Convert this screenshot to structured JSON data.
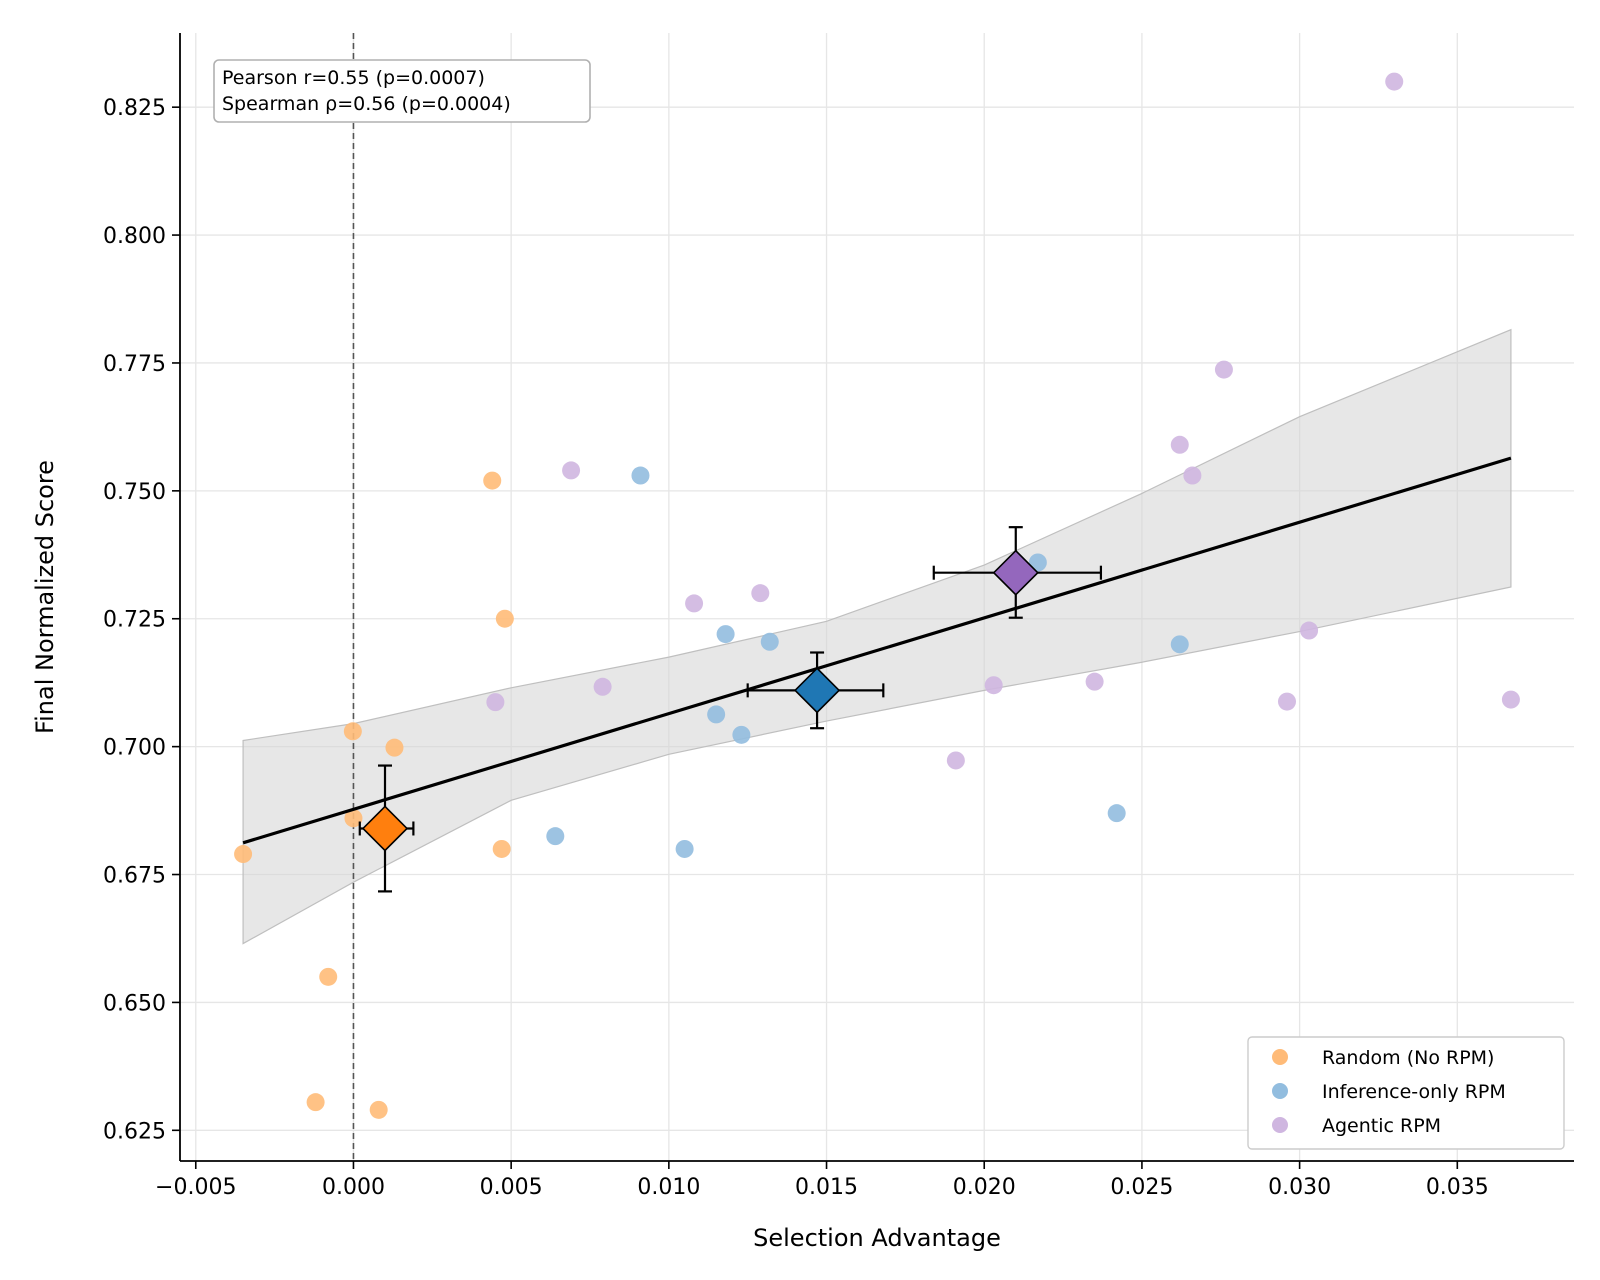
{
  "chart_data": {
    "type": "scatter",
    "xlabel": "Selection Advantage",
    "ylabel": "Final Normalized Score",
    "xlim": [
      -0.0055,
      0.0387
    ],
    "ylim": [
      0.619,
      0.8395
    ],
    "x_ticks": [
      -0.005,
      0.0,
      0.005,
      0.01,
      0.015,
      0.02,
      0.025,
      0.03,
      0.035
    ],
    "x_tick_labels": [
      "−0.005",
      "0.000",
      "0.005",
      "0.010",
      "0.015",
      "0.020",
      "0.025",
      "0.030",
      "0.035"
    ],
    "y_ticks": [
      0.625,
      0.65,
      0.675,
      0.7,
      0.725,
      0.75,
      0.775,
      0.8,
      0.825
    ],
    "y_tick_labels": [
      "0.625",
      "0.650",
      "0.675",
      "0.700",
      "0.725",
      "0.750",
      "0.775",
      "0.800",
      "0.825"
    ],
    "grid": true,
    "legend_position": "bottom-right",
    "reference_line_x": 0.0,
    "annotation": {
      "lines": [
        "Pearson r=0.55 (p=0.0007)",
        "Spearman ρ=0.56 (p=0.0004)"
      ],
      "position": "top-left"
    },
    "series": [
      {
        "name": "Random (No RPM)",
        "color": "#ffbb78",
        "points": [
          {
            "x": -0.0035,
            "y": 0.679
          },
          {
            "x": -2e-05,
            "y": 0.703
          },
          {
            "x": 0.0,
            "y": 0.686
          },
          {
            "x": 0.0013,
            "y": 0.6998
          },
          {
            "x": -0.0008,
            "y": 0.655
          },
          {
            "x": -0.0012,
            "y": 0.6305
          },
          {
            "x": 0.0008,
            "y": 0.629
          },
          {
            "x": 0.0044,
            "y": 0.752
          },
          {
            "x": 0.0048,
            "y": 0.725
          },
          {
            "x": 0.0047,
            "y": 0.68
          }
        ]
      },
      {
        "name": "Inference-only RPM",
        "color": "#92bddf",
        "points": [
          {
            "x": 0.0091,
            "y": 0.753
          },
          {
            "x": 0.0118,
            "y": 0.722
          },
          {
            "x": 0.0132,
            "y": 0.7205
          },
          {
            "x": 0.0115,
            "y": 0.7063
          },
          {
            "x": 0.0123,
            "y": 0.7023
          },
          {
            "x": 0.0064,
            "y": 0.6825
          },
          {
            "x": 0.0105,
            "y": 0.68
          },
          {
            "x": 0.0217,
            "y": 0.736
          },
          {
            "x": 0.0262,
            "y": 0.72
          },
          {
            "x": 0.0242,
            "y": 0.687
          }
        ]
      },
      {
        "name": "Agentic RPM",
        "color": "#cfb6e0",
        "points": [
          {
            "x": 0.0069,
            "y": 0.754
          },
          {
            "x": 0.0045,
            "y": 0.7087
          },
          {
            "x": 0.0079,
            "y": 0.7117
          },
          {
            "x": 0.0108,
            "y": 0.728
          },
          {
            "x": 0.0129,
            "y": 0.73
          },
          {
            "x": 0.0191,
            "y": 0.6973
          },
          {
            "x": 0.0203,
            "y": 0.712
          },
          {
            "x": 0.0235,
            "y": 0.7127
          },
          {
            "x": 0.0262,
            "y": 0.759
          },
          {
            "x": 0.0266,
            "y": 0.753
          },
          {
            "x": 0.0276,
            "y": 0.7737
          },
          {
            "x": 0.0296,
            "y": 0.7088
          },
          {
            "x": 0.0303,
            "y": 0.7227
          },
          {
            "x": 0.033,
            "y": 0.83
          },
          {
            "x": 0.0367,
            "y": 0.7092
          }
        ]
      }
    ],
    "group_means": [
      {
        "group": "Random (No RPM)",
        "color": "#ff7f0e",
        "x": 0.001,
        "y": 0.684,
        "x_err": [
          0.0002,
          0.0019
        ],
        "y_err": [
          0.6717,
          0.6963
        ]
      },
      {
        "group": "Inference-only RPM",
        "color": "#1f77b4",
        "x": 0.0147,
        "y": 0.711,
        "x_err": [
          0.0125,
          0.0168
        ],
        "y_err": [
          0.7036,
          0.7184
        ]
      },
      {
        "group": "Agentic RPM",
        "color": "#9467bd",
        "x": 0.021,
        "y": 0.734,
        "x_err": [
          0.0184,
          0.0237
        ],
        "y_err": [
          0.7252,
          0.7429
        ]
      }
    ],
    "regression": {
      "color": "#000000",
      "line": [
        {
          "x": -0.0035,
          "y": 0.6812
        },
        {
          "x": 0.0367,
          "y": 0.7564
        }
      ],
      "band_color": "#d3d3d3",
      "band_upper": [
        {
          "x": -0.0035,
          "y": 0.7012
        },
        {
          "x": 0.0,
          "y": 0.7045
        },
        {
          "x": 0.005,
          "y": 0.7115
        },
        {
          "x": 0.01,
          "y": 0.7175
        },
        {
          "x": 0.015,
          "y": 0.7245
        },
        {
          "x": 0.02,
          "y": 0.7355
        },
        {
          "x": 0.025,
          "y": 0.7495
        },
        {
          "x": 0.03,
          "y": 0.7645
        },
        {
          "x": 0.0367,
          "y": 0.7815
        }
      ],
      "band_lower": [
        {
          "x": -0.0035,
          "y": 0.6615
        },
        {
          "x": 0.0,
          "y": 0.6735
        },
        {
          "x": 0.005,
          "y": 0.6895
        },
        {
          "x": 0.01,
          "y": 0.6985
        },
        {
          "x": 0.015,
          "y": 0.705
        },
        {
          "x": 0.02,
          "y": 0.711
        },
        {
          "x": 0.025,
          "y": 0.7165
        },
        {
          "x": 0.03,
          "y": 0.7225
        },
        {
          "x": 0.0367,
          "y": 0.7312
        }
      ]
    }
  }
}
